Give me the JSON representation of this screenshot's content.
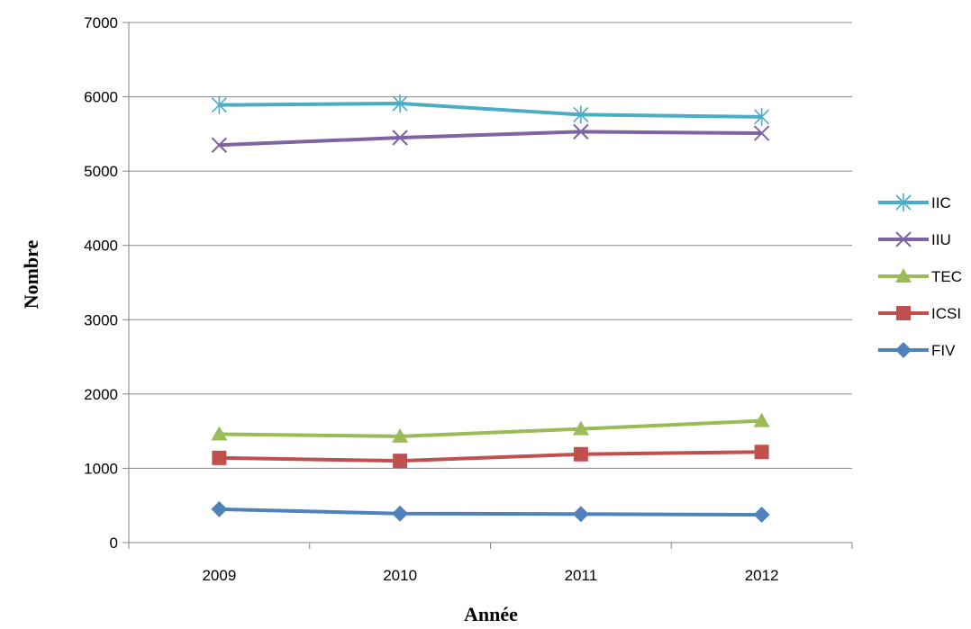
{
  "chart_data": {
    "type": "line",
    "title": "",
    "xlabel": "Année",
    "ylabel": "Nombre",
    "categories": [
      "2009",
      "2010",
      "2011",
      "2012"
    ],
    "ylim": [
      0,
      7000
    ],
    "yticks": [
      0,
      1000,
      2000,
      3000,
      4000,
      5000,
      6000,
      7000
    ],
    "grid": true,
    "legend_position": "right",
    "series": [
      {
        "name": "IIC",
        "values": [
          5890,
          5910,
          5760,
          5730
        ],
        "color": "#4bacc6",
        "marker": "asterisk"
      },
      {
        "name": "IIU",
        "values": [
          5350,
          5450,
          5530,
          5510
        ],
        "color": "#8064a2",
        "marker": "x"
      },
      {
        "name": "TEC",
        "values": [
          1460,
          1430,
          1530,
          1640
        ],
        "color": "#9bbb59",
        "marker": "triangle"
      },
      {
        "name": "ICSI",
        "values": [
          1140,
          1100,
          1190,
          1220
        ],
        "color": "#c0504d",
        "marker": "square"
      },
      {
        "name": "FIV",
        "values": [
          450,
          390,
          385,
          375
        ],
        "color": "#4f81bd",
        "marker": "diamond"
      }
    ]
  }
}
